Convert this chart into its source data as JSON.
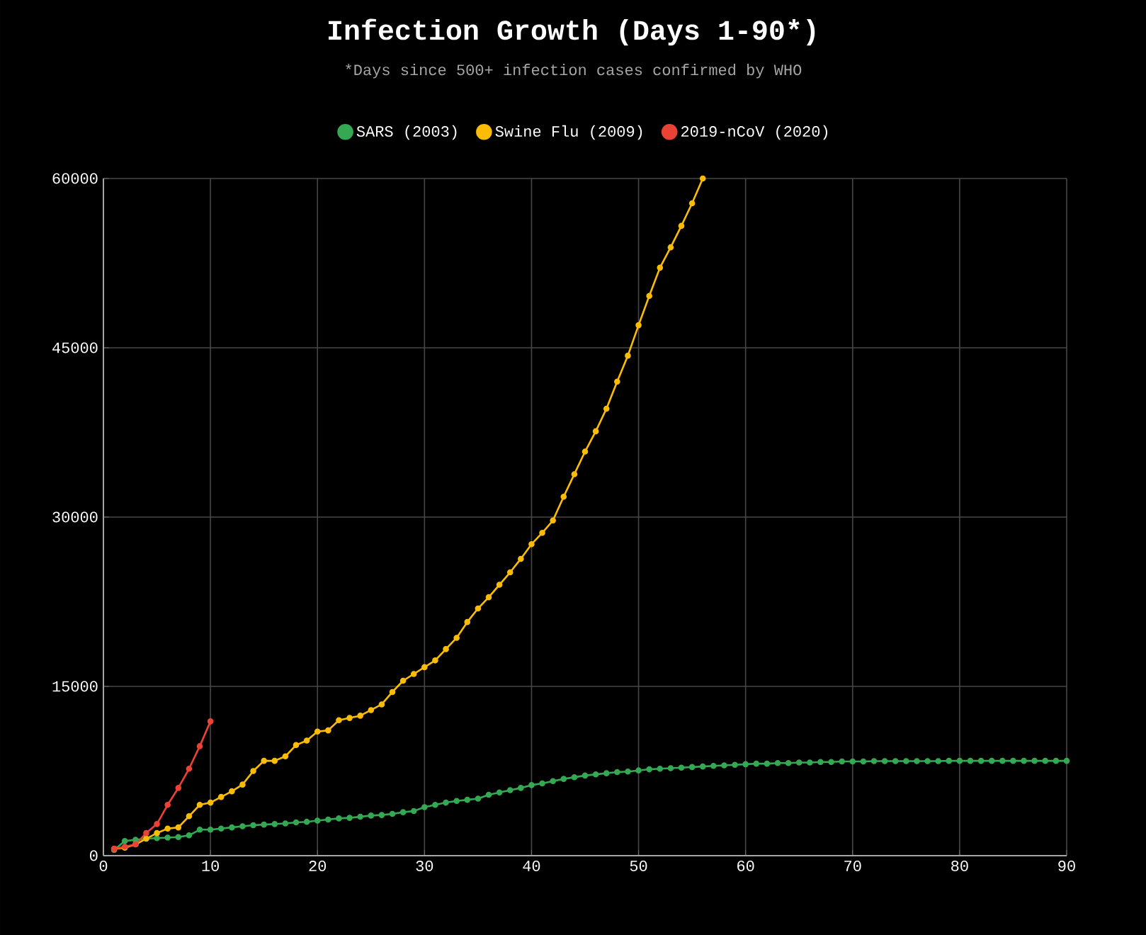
{
  "chart_data": {
    "type": "line",
    "title": "Infection Growth (Days 1-90*)",
    "subtitle": "*Days since 500+ infection cases confirmed by WHO",
    "legend": "top",
    "grid": true,
    "marker": "circle",
    "line_style": "solid",
    "xlim": [
      0,
      90
    ],
    "xticks": [
      0,
      10,
      20,
      30,
      40,
      50,
      60,
      70,
      80,
      90
    ],
    "ylim": [
      0,
      60000
    ],
    "yticks": [
      0,
      15000,
      30000,
      45000,
      60000
    ],
    "series": [
      {
        "name": "SARS (2003)",
        "color": "#34a853",
        "x": [
          1,
          2,
          3,
          4,
          5,
          6,
          7,
          8,
          9,
          10,
          11,
          12,
          13,
          14,
          15,
          16,
          17,
          18,
          19,
          20,
          21,
          22,
          23,
          24,
          25,
          26,
          27,
          28,
          29,
          30,
          31,
          32,
          33,
          34,
          35,
          36,
          37,
          38,
          39,
          40,
          41,
          42,
          43,
          44,
          45,
          46,
          47,
          48,
          49,
          50,
          51,
          52,
          53,
          54,
          55,
          56,
          57,
          58,
          59,
          60,
          61,
          62,
          63,
          64,
          65,
          66,
          67,
          68,
          69,
          70,
          71,
          72,
          73,
          74,
          75,
          76,
          77,
          78,
          79,
          80,
          81,
          82,
          83,
          84,
          85,
          86,
          87,
          88,
          89,
          90
        ],
        "values": [
          500,
          1300,
          1400,
          1500,
          1550,
          1600,
          1650,
          1800,
          2300,
          2300,
          2400,
          2500,
          2600,
          2700,
          2750,
          2800,
          2850,
          2950,
          3000,
          3100,
          3200,
          3300,
          3350,
          3450,
          3550,
          3600,
          3700,
          3850,
          3950,
          4300,
          4500,
          4700,
          4850,
          4950,
          5050,
          5400,
          5600,
          5800,
          6000,
          6250,
          6400,
          6600,
          6800,
          6950,
          7100,
          7200,
          7300,
          7400,
          7450,
          7550,
          7650,
          7700,
          7750,
          7800,
          7850,
          7900,
          7950,
          8000,
          8050,
          8100,
          8150,
          8150,
          8200,
          8200,
          8250,
          8250,
          8300,
          8300,
          8350,
          8350,
          8350,
          8380,
          8380,
          8380,
          8380,
          8380,
          8380,
          8380,
          8400,
          8400,
          8400,
          8400,
          8400,
          8400,
          8400,
          8400,
          8400,
          8400,
          8400,
          8400
        ]
      },
      {
        "name": "Swine Flu (2009)",
        "color": "#fbbc05",
        "x": [
          1,
          2,
          3,
          4,
          5,
          6,
          7,
          8,
          9,
          10,
          11,
          12,
          13,
          14,
          15,
          16,
          17,
          18,
          19,
          20,
          21,
          22,
          23,
          24,
          25,
          26,
          27,
          28,
          29,
          30,
          31,
          32,
          33,
          34,
          35,
          36,
          37,
          38,
          39,
          40,
          41,
          42,
          43,
          44,
          45,
          46,
          47,
          48,
          49,
          50,
          51,
          52,
          53,
          54,
          55,
          56
        ],
        "values": [
          600,
          700,
          1000,
          1500,
          2000,
          2400,
          2500,
          3500,
          4500,
          4700,
          5200,
          5700,
          6300,
          7500,
          8400,
          8400,
          8800,
          9800,
          10200,
          11000,
          11100,
          12000,
          12200,
          12400,
          12900,
          13400,
          14500,
          15500,
          16100,
          16700,
          17300,
          18300,
          19300,
          20700,
          21900,
          22900,
          24000,
          25100,
          26300,
          27600,
          28600,
          29700,
          31800,
          33800,
          35800,
          37600,
          39600,
          42000,
          44300,
          47000,
          49600,
          52100,
          53900,
          55800,
          57800,
          60000
        ]
      },
      {
        "name": "2019-nCoV (2020)",
        "color": "#ea4335",
        "x": [
          1,
          2,
          3,
          4,
          5,
          6,
          7,
          8,
          9,
          10
        ],
        "values": [
          600,
          800,
          1000,
          2000,
          2800,
          4500,
          6000,
          7700,
          9700,
          11900
        ]
      }
    ]
  }
}
